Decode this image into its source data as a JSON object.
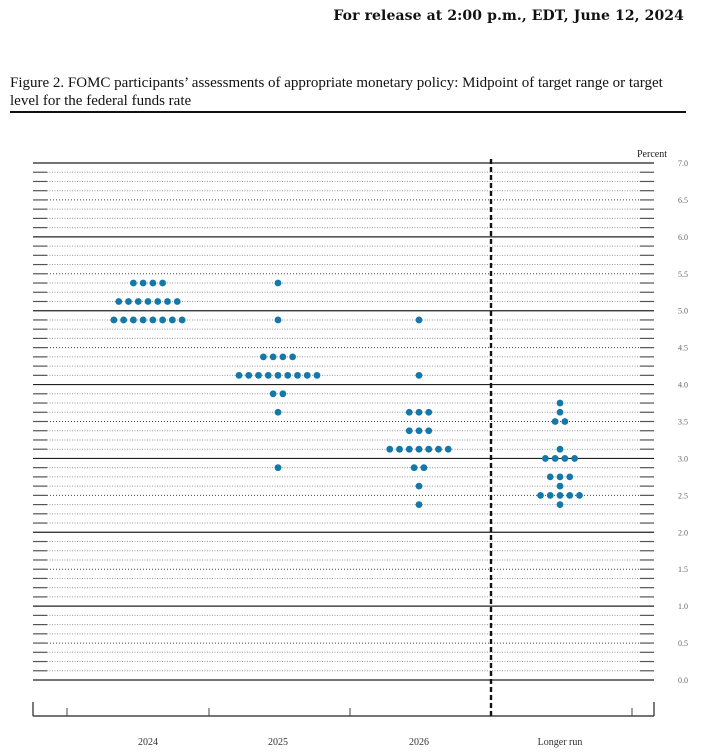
{
  "header": {
    "release_text": "For release at 2:00 p.m., EDT, June 12, 2024"
  },
  "figure": {
    "caption": "Figure 2.  FOMC participants’ assessments of appropriate monetary policy:  Midpoint of target range or target level for the federal funds rate"
  },
  "chart_data": {
    "type": "scatter",
    "subtype": "dot-plot",
    "title": "FOMC participants’ assessments of appropriate monetary policy: Midpoint of target range or target level for the federal funds rate",
    "xlabel": "",
    "ylabel": "Percent",
    "ylim": [
      0,
      7
    ],
    "y_ticks": [
      "0.0",
      "0.5",
      "1.0",
      "1.5",
      "2.0",
      "2.5",
      "3.0",
      "3.5",
      "4.0",
      "4.5",
      "5.0",
      "5.5",
      "6.0",
      "6.5",
      "7.0"
    ],
    "grid": "solid at whole percents, dotted every 0.125",
    "dot_color": "#1478a8",
    "categories": [
      "2024",
      "2025",
      "2026",
      "Longer run"
    ],
    "separator_after": "2026",
    "series": [
      {
        "name": "2024",
        "points": [
          {
            "rate": 5.375,
            "count": 4
          },
          {
            "rate": 5.125,
            "count": 7
          },
          {
            "rate": 4.875,
            "count": 8
          }
        ]
      },
      {
        "name": "2025",
        "points": [
          {
            "rate": 5.375,
            "count": 1
          },
          {
            "rate": 4.875,
            "count": 1
          },
          {
            "rate": 4.375,
            "count": 4
          },
          {
            "rate": 4.125,
            "count": 9
          },
          {
            "rate": 3.875,
            "count": 2
          },
          {
            "rate": 3.625,
            "count": 1
          },
          {
            "rate": 2.875,
            "count": 1
          }
        ]
      },
      {
        "name": "2026",
        "points": [
          {
            "rate": 4.875,
            "count": 1
          },
          {
            "rate": 4.125,
            "count": 1
          },
          {
            "rate": 3.625,
            "count": 3
          },
          {
            "rate": 3.375,
            "count": 3
          },
          {
            "rate": 3.125,
            "count": 7
          },
          {
            "rate": 2.875,
            "count": 2
          },
          {
            "rate": 2.625,
            "count": 1
          },
          {
            "rate": 2.375,
            "count": 1
          }
        ]
      },
      {
        "name": "Longer run",
        "points": [
          {
            "rate": 3.75,
            "count": 1
          },
          {
            "rate": 3.625,
            "count": 1
          },
          {
            "rate": 3.5,
            "count": 2
          },
          {
            "rate": 3.125,
            "count": 1
          },
          {
            "rate": 3.0,
            "count": 4
          },
          {
            "rate": 2.75,
            "count": 3
          },
          {
            "rate": 2.625,
            "count": 1
          },
          {
            "rate": 2.5,
            "count": 5
          },
          {
            "rate": 2.375,
            "count": 1
          }
        ]
      }
    ]
  }
}
